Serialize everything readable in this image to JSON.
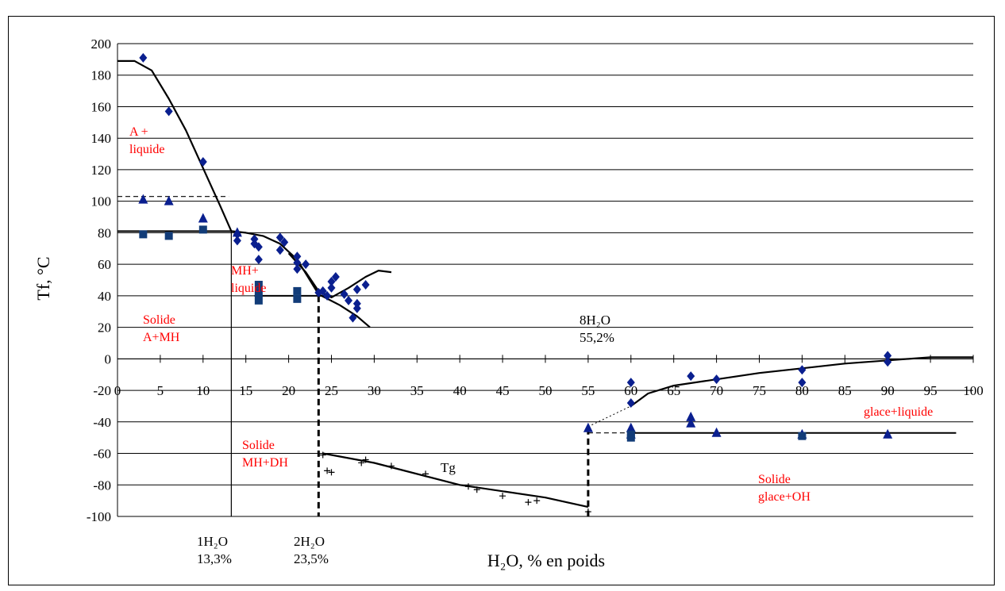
{
  "colors": {
    "points": "#0a1f8f",
    "squares": "#123c78",
    "annotation_red": "#ff0000",
    "grid": "#000000",
    "background": "#ffffff"
  },
  "chart_data": {
    "type": "scatter",
    "title": "",
    "xlabel": "H₂O, % en poids",
    "ylabel": "Tf, °C",
    "xlim": [
      0,
      100
    ],
    "ylim": [
      -100,
      200
    ],
    "x_ticks": [
      0,
      5,
      10,
      15,
      20,
      25,
      30,
      35,
      40,
      45,
      50,
      55,
      60,
      65,
      70,
      75,
      80,
      85,
      90,
      95,
      100
    ],
    "y_ticks": [
      200,
      180,
      160,
      140,
      120,
      100,
      80,
      60,
      40,
      20,
      0,
      -20,
      -40,
      -60,
      -80,
      -100
    ],
    "grid": "horizontal",
    "legend": "none",
    "series": [
      {
        "marker": "diamond",
        "points": [
          [
            3,
            191
          ],
          [
            6,
            157
          ],
          [
            10,
            125
          ],
          [
            14,
            75
          ],
          [
            14,
            79
          ],
          [
            16,
            76
          ],
          [
            16,
            73
          ],
          [
            16.5,
            71
          ],
          [
            16.5,
            63
          ],
          [
            19,
            77
          ],
          [
            19.5,
            74
          ],
          [
            19,
            69
          ],
          [
            21,
            65
          ],
          [
            21,
            57
          ],
          [
            21,
            61
          ],
          [
            22,
            60
          ],
          [
            23.5,
            42
          ],
          [
            24,
            43
          ],
          [
            24.5,
            40
          ],
          [
            25,
            45
          ],
          [
            25,
            49
          ],
          [
            25.5,
            52
          ],
          [
            26.5,
            41
          ],
          [
            27,
            37
          ],
          [
            28,
            44
          ],
          [
            28,
            35
          ],
          [
            28,
            32
          ],
          [
            27.5,
            26
          ],
          [
            29,
            47
          ],
          [
            60,
            -15
          ],
          [
            60,
            -28
          ],
          [
            67,
            -11
          ],
          [
            70,
            -13
          ],
          [
            80,
            -7
          ],
          [
            80,
            -15
          ],
          [
            90,
            2
          ],
          [
            90,
            -2
          ]
        ]
      },
      {
        "marker": "triangle",
        "points": [
          [
            3,
            101
          ],
          [
            6,
            100
          ],
          [
            10,
            89
          ],
          [
            14,
            80
          ],
          [
            55,
            -44
          ],
          [
            60,
            -44
          ],
          [
            60,
            -48
          ],
          [
            67,
            -37
          ],
          [
            67,
            -41
          ],
          [
            70,
            -47
          ],
          [
            80,
            -48
          ],
          [
            90,
            -48
          ]
        ]
      },
      {
        "marker": "square",
        "points": [
          [
            3,
            79
          ],
          [
            6,
            78
          ],
          [
            10,
            82
          ],
          [
            16.5,
            47
          ],
          [
            16.5,
            42
          ],
          [
            16.5,
            37
          ],
          [
            21,
            43
          ],
          [
            21,
            38
          ],
          [
            60,
            -48
          ],
          [
            60,
            -50
          ],
          [
            80,
            -49
          ]
        ]
      },
      {
        "marker": "plus",
        "points": [
          [
            24,
            -61
          ],
          [
            24.5,
            -71
          ],
          [
            25,
            -72
          ],
          [
            29,
            -64
          ],
          [
            28.5,
            -66
          ],
          [
            32,
            -68
          ],
          [
            36,
            -73
          ],
          [
            41,
            -81
          ],
          [
            42,
            -83
          ],
          [
            45,
            -87
          ],
          [
            48,
            -91
          ],
          [
            49,
            -90
          ],
          [
            55,
            -97
          ]
        ]
      }
    ],
    "curves": [
      {
        "style": "solid",
        "points": [
          [
            0,
            189
          ],
          [
            2,
            189
          ],
          [
            4,
            183
          ],
          [
            6,
            165
          ],
          [
            8,
            145
          ],
          [
            10,
            121
          ],
          [
            12,
            97
          ],
          [
            13.3,
            81
          ],
          [
            15,
            80
          ],
          [
            17,
            78
          ],
          [
            19,
            73
          ],
          [
            21,
            63
          ],
          [
            23.5,
            41
          ],
          [
            26,
            34
          ],
          [
            28,
            27
          ],
          [
            29.5,
            20
          ]
        ]
      },
      {
        "style": "solid",
        "points": [
          [
            20,
            67
          ],
          [
            22,
            55
          ],
          [
            23.5,
            43
          ],
          [
            25,
            39
          ],
          [
            27,
            45
          ],
          [
            29,
            52
          ],
          [
            30.5,
            56
          ],
          [
            32,
            55
          ]
        ]
      },
      {
        "style": "solid",
        "points": [
          [
            24,
            -60
          ],
          [
            30,
            -66
          ],
          [
            40,
            -80
          ],
          [
            50,
            -88
          ],
          [
            55,
            -94
          ]
        ]
      },
      {
        "style": "dotted",
        "points": [
          [
            55,
            -43
          ],
          [
            60,
            -30
          ]
        ]
      },
      {
        "style": "solid",
        "points": [
          [
            60,
            -30
          ],
          [
            62,
            -22
          ],
          [
            65,
            -17
          ],
          [
            70,
            -13
          ],
          [
            75,
            -9
          ],
          [
            80,
            -6
          ],
          [
            85,
            -3
          ],
          [
            90,
            -1
          ],
          [
            95,
            1
          ],
          [
            100,
            1
          ]
        ]
      }
    ],
    "hlines": [
      {
        "y": 81,
        "x1": 0,
        "x2": 13.3,
        "style": "solid"
      },
      {
        "y": 103,
        "x1": 0,
        "x2": 13,
        "style": "dashed"
      },
      {
        "y": 40,
        "x1": 16,
        "x2": 25,
        "style": "solid"
      },
      {
        "y": -47,
        "x1": 60,
        "x2": 98,
        "style": "solid"
      },
      {
        "y": -47,
        "x1": 55,
        "x2": 60,
        "style": "dashed"
      }
    ],
    "vlines": [
      {
        "x": 13.3,
        "y1": 81,
        "y2": -100,
        "style": "solid"
      },
      {
        "x": 23.5,
        "y1": 40,
        "y2": -100,
        "style": "dashed"
      },
      {
        "x": 55,
        "y1": -44,
        "y2": -100,
        "style": "dashed"
      }
    ],
    "annotations": [
      {
        "id": "a-liquide",
        "lines": [
          "A +",
          "liquide"
        ],
        "color": "red"
      },
      {
        "id": "mh-liquide",
        "lines": [
          "MH+",
          "liquide"
        ],
        "color": "red"
      },
      {
        "id": "solide-a-mh",
        "lines": [
          "Solide",
          "A+MH"
        ],
        "color": "red"
      },
      {
        "id": "solide-mh-dh",
        "lines": [
          "Solide",
          "MH+DH"
        ],
        "color": "red"
      },
      {
        "id": "glace-liquide",
        "lines": [
          "glace+liquide"
        ],
        "color": "red"
      },
      {
        "id": "solide-glace-oh",
        "lines": [
          "Solide",
          "glace+OH"
        ],
        "color": "red"
      },
      {
        "id": "tg",
        "lines": [
          "Tg"
        ],
        "color": "black"
      },
      {
        "id": "8h2o",
        "lines": [
          "8H₂O",
          "55,2%"
        ],
        "color": "black"
      },
      {
        "id": "1h2o",
        "lines": [
          "1H₂O",
          "13,3%"
        ],
        "color": "black"
      },
      {
        "id": "2h2o",
        "lines": [
          "2H₂O",
          "23,5%"
        ],
        "color": "black"
      }
    ]
  }
}
